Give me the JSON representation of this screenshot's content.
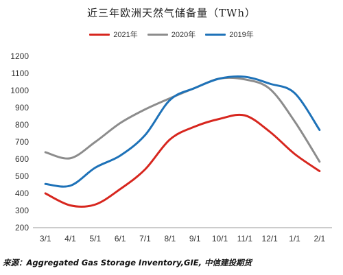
{
  "chart_data": {
    "type": "line",
    "title": "近三年欧洲天然气储备量（TWh）",
    "categories": [
      "3/1",
      "4/1",
      "5/1",
      "6/1",
      "7/1",
      "8/1",
      "9/1",
      "10/1",
      "11/1",
      "12/1",
      "1/1",
      "2/1"
    ],
    "yticks": [
      200,
      300,
      400,
      500,
      600,
      700,
      800,
      900,
      1000,
      1100,
      1200
    ],
    "ylim": [
      200,
      1200
    ],
    "grid": false,
    "legend_position": "top",
    "series": [
      {
        "name": "2021年",
        "color": "#d7261e",
        "values": [
          400,
          330,
          335,
          425,
          540,
          715,
          790,
          835,
          855,
          760,
          630,
          530
        ]
      },
      {
        "name": "2020年",
        "color": "#8c8c8c",
        "values": [
          640,
          605,
          700,
          810,
          890,
          955,
          1015,
          1070,
          1065,
          1010,
          820,
          585
        ]
      },
      {
        "name": "2019年",
        "color": "#1e72b8",
        "values": [
          455,
          445,
          550,
          620,
          740,
          945,
          1015,
          1070,
          1080,
          1040,
          985,
          770
        ]
      }
    ]
  },
  "source": "来源：Aggregated Gas Storage Inventory,GIE, 中信建投期货"
}
